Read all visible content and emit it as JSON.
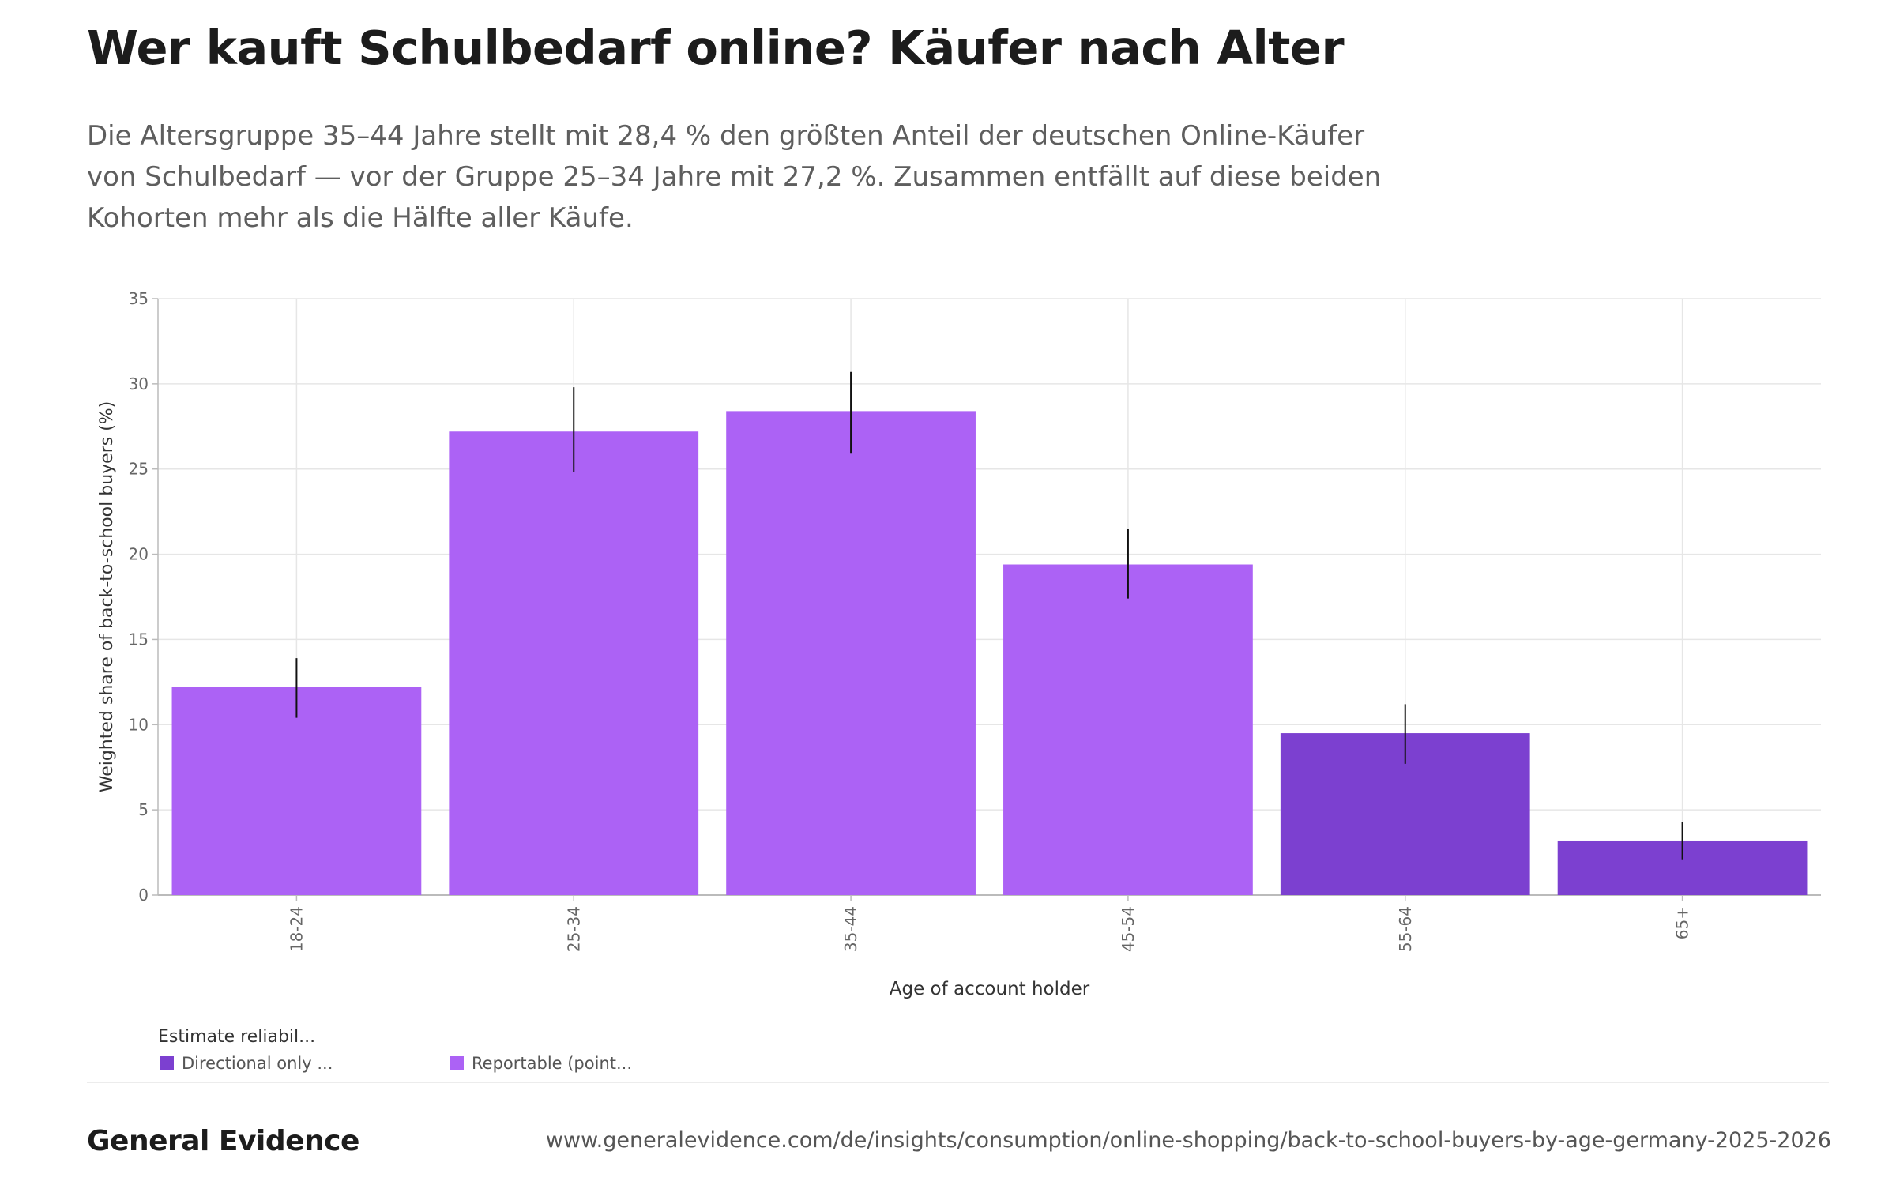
{
  "header": {
    "title": "Wer kauft Schulbedarf online? Käufer nach Alter",
    "subtitle": "Die Altersgruppe 35–44 Jahre stellt mit 28,4 % den größten Anteil der deutschen Online-Käufer von Schulbedarf — vor der Gruppe 25–34 Jahre mit 27,2 %. Zusammen entfällt auf diese beiden Kohorten mehr als die Hälfte aller Käufe."
  },
  "chart_data": {
    "type": "bar",
    "categories": [
      "18-24",
      "25-34",
      "35-44",
      "45-54",
      "55-64",
      "65+"
    ],
    "values": [
      12.2,
      27.2,
      28.4,
      19.4,
      9.5,
      3.2
    ],
    "error_low": [
      10.4,
      24.8,
      25.9,
      17.4,
      7.7,
      2.1
    ],
    "error_high": [
      13.9,
      29.8,
      30.7,
      21.5,
      11.2,
      4.3
    ],
    "reliability": [
      "Reportable",
      "Reportable",
      "Reportable",
      "Reportable",
      "Directional",
      "Directional"
    ],
    "xlabel": "Age of account holder",
    "ylabel": "Weighted share of back-to-school buyers (%)",
    "ylim": [
      0,
      35
    ],
    "yticks": [
      0,
      5,
      10,
      15,
      20,
      25,
      30,
      35
    ],
    "grid": true,
    "colors": {
      "Reportable": "#ac62f5",
      "Directional": "#7c40d0"
    },
    "legend": {
      "title": "Estimate reliabil...",
      "placement": "bottom-left",
      "items": [
        {
          "key": "Directional",
          "label": "Directional only ..."
        },
        {
          "key": "Reportable",
          "label": "Reportable (point..."
        }
      ]
    }
  },
  "footer": {
    "brand": "General Evidence",
    "url": "www.generalevidence.com/de/insights/consumption/online-shopping/back-to-school-buyers-by-age-germany-2025-2026"
  }
}
